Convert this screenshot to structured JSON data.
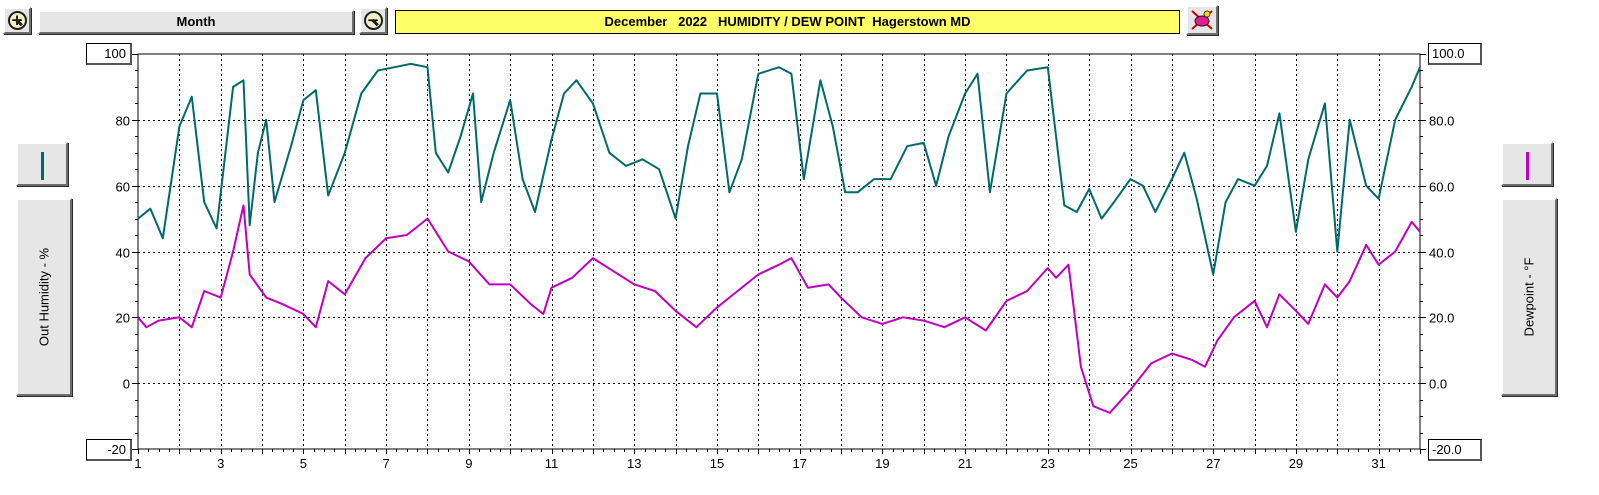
{
  "toolbar": {
    "zoom_in_icon": "zoom-in-icon",
    "zoom_out_icon": "zoom-out-icon",
    "period_label": "Month",
    "title": "December   2022   HUMIDITY / DEW POINT  Hagerstown MD",
    "paint_icon": "paint-bucket-icon"
  },
  "left_axis": {
    "label": "Out Humidity - %",
    "max_box": "100",
    "min_box": "-20",
    "color": "#006a6a"
  },
  "right_axis": {
    "label": "Dewpoint - °F",
    "max_box": "100.0",
    "min_box": "-20.0",
    "color": "#c000c0"
  },
  "chart_data": {
    "type": "line",
    "title": "December   2022   HUMIDITY / DEW POINT  Hagerstown MD",
    "xlim": [
      1,
      32
    ],
    "x_ticks": [
      "1",
      "3",
      "5",
      "7",
      "9",
      "11",
      "13",
      "15",
      "17",
      "19",
      "21",
      "23",
      "25",
      "27",
      "29",
      "31"
    ],
    "y_left_lim": [
      -20,
      100
    ],
    "y_left_ticks": [
      "100",
      "80",
      "60",
      "40",
      "20",
      "0",
      "-20"
    ],
    "y_right_lim": [
      -20,
      100
    ],
    "y_right_ticks": [
      "100.0",
      "80.0",
      "60.0",
      "40.0",
      "20.0",
      "0.0",
      "-20.0"
    ],
    "grid": true,
    "series": [
      {
        "axis": "left",
        "color": "#006a6a",
        "x": [
          1.0,
          1.3,
          1.6,
          2.0,
          2.3,
          2.6,
          2.9,
          3.3,
          3.55,
          3.7,
          3.9,
          4.1,
          4.3,
          4.7,
          5.0,
          5.3,
          5.6,
          6.0,
          6.4,
          6.8,
          7.2,
          7.6,
          8.0,
          8.2,
          8.5,
          8.8,
          9.1,
          9.3,
          9.6,
          10.0,
          10.3,
          10.6,
          11.0,
          11.3,
          11.6,
          12.0,
          12.4,
          12.8,
          13.2,
          13.6,
          14.0,
          14.3,
          14.6,
          15.0,
          15.3,
          15.6,
          16.0,
          16.5,
          16.8,
          17.1,
          17.5,
          17.8,
          18.1,
          18.4,
          18.8,
          19.2,
          19.6,
          20.0,
          20.3,
          20.6,
          21.0,
          21.3,
          21.6,
          22.0,
          22.5,
          23.0,
          23.4,
          23.7,
          24.0,
          24.3,
          24.6,
          25.0,
          25.3,
          25.6,
          26.0,
          26.3,
          26.6,
          27.0,
          27.3,
          27.6,
          28.0,
          28.3,
          28.6,
          29.0,
          29.3,
          29.7,
          30.0,
          30.3,
          30.7,
          31.0,
          31.4,
          31.8,
          32.0
        ],
        "y": [
          50,
          53,
          44,
          78,
          87,
          55,
          47,
          90,
          92,
          48,
          70,
          80,
          55,
          72,
          86,
          89,
          57,
          70,
          88,
          95,
          96,
          97,
          96,
          70,
          64,
          75,
          88,
          55,
          70,
          86,
          62,
          52,
          74,
          88,
          92,
          85,
          70,
          66,
          68,
          65,
          50,
          72,
          88,
          88,
          58,
          68,
          94,
          96,
          94,
          62,
          92,
          78,
          58,
          58,
          62,
          62,
          72,
          73,
          60,
          75,
          88,
          94,
          58,
          88,
          95,
          96,
          54,
          52,
          59,
          50,
          55,
          62,
          60,
          52,
          62,
          70,
          56,
          33,
          55,
          62,
          60,
          66,
          82,
          46,
          68,
          85,
          40,
          80,
          60,
          56,
          80,
          90,
          96
        ],
        "name": ""
      },
      {
        "axis": "right",
        "color": "#c000c0",
        "x": [
          1.0,
          1.2,
          1.5,
          2.0,
          2.3,
          2.6,
          3.0,
          3.3,
          3.55,
          3.7,
          4.1,
          4.5,
          5.0,
          5.3,
          5.6,
          6.0,
          6.5,
          7.0,
          7.5,
          8.0,
          8.5,
          9.0,
          9.5,
          10.0,
          10.5,
          10.8,
          11.0,
          11.5,
          12.0,
          12.5,
          13.0,
          13.5,
          14.0,
          14.5,
          15.0,
          15.5,
          16.0,
          16.5,
          16.8,
          17.2,
          17.7,
          18.0,
          18.5,
          19.0,
          19.5,
          20.0,
          20.5,
          21.0,
          21.5,
          22.0,
          22.5,
          23.0,
          23.2,
          23.5,
          23.8,
          24.1,
          24.5,
          25.0,
          25.5,
          26.0,
          26.5,
          26.8,
          27.1,
          27.5,
          28.0,
          28.3,
          28.6,
          29.0,
          29.3,
          29.7,
          30.0,
          30.3,
          30.7,
          31.0,
          31.4,
          31.8,
          32.0
        ],
        "y": [
          20,
          17,
          19,
          20,
          17,
          28,
          26,
          40,
          54,
          33,
          26,
          24,
          21,
          17,
          31,
          27,
          38,
          44,
          45,
          50,
          40,
          37,
          30,
          30,
          24,
          21,
          29,
          32,
          38,
          34,
          30,
          28,
          22,
          17,
          23,
          28,
          33,
          36,
          38,
          29,
          30,
          26,
          20,
          18,
          20,
          19,
          17,
          20,
          16,
          25,
          28,
          35,
          32,
          36,
          5,
          -7,
          -9,
          -2,
          6,
          9,
          7,
          5,
          13,
          20,
          25,
          17,
          27,
          22,
          18,
          30,
          26,
          31,
          42,
          36,
          40,
          49,
          46
        ],
        "name": ""
      }
    ]
  }
}
